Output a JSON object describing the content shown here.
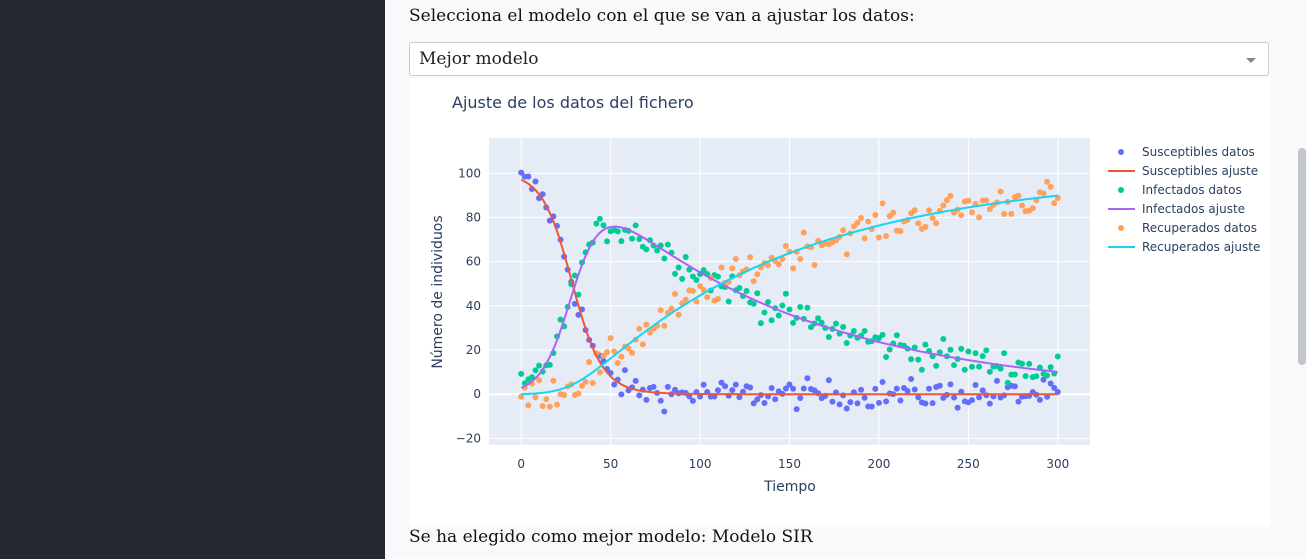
{
  "prompt_label": "Selecciona el modelo con el que se van a ajustar los datos:",
  "model_select": {
    "value": "Mejor modelo"
  },
  "result_text": "Se ha elegido como mejor modelo: Modelo SIR",
  "chart_data": {
    "type": "scatter",
    "title": "Ajuste de los datos del fichero",
    "xlabel": "Tiempo",
    "ylabel": "Número de individuos",
    "xlim": [
      -18,
      318
    ],
    "ylim": [
      -23,
      116
    ],
    "xticks": [
      0,
      50,
      100,
      150,
      200,
      250,
      300
    ],
    "yticks": [
      -20,
      0,
      20,
      40,
      60,
      80,
      100
    ],
    "grid": true,
    "legend_position": "right",
    "series": [
      {
        "name": "Susceptibles datos",
        "kind": "markers",
        "color": "#636efa"
      },
      {
        "name": "Susceptibles ajuste",
        "kind": "line",
        "color": "#ef553b"
      },
      {
        "name": "Infectados datos",
        "kind": "markers",
        "color": "#00cc96"
      },
      {
        "name": "Infectados ajuste",
        "kind": "line",
        "color": "#ab63fa"
      },
      {
        "name": "Recuperados datos",
        "kind": "markers",
        "color": "#ffa15a"
      },
      {
        "name": "Recuperados ajuste",
        "kind": "line",
        "color": "#19d3f3"
      }
    ]
  }
}
